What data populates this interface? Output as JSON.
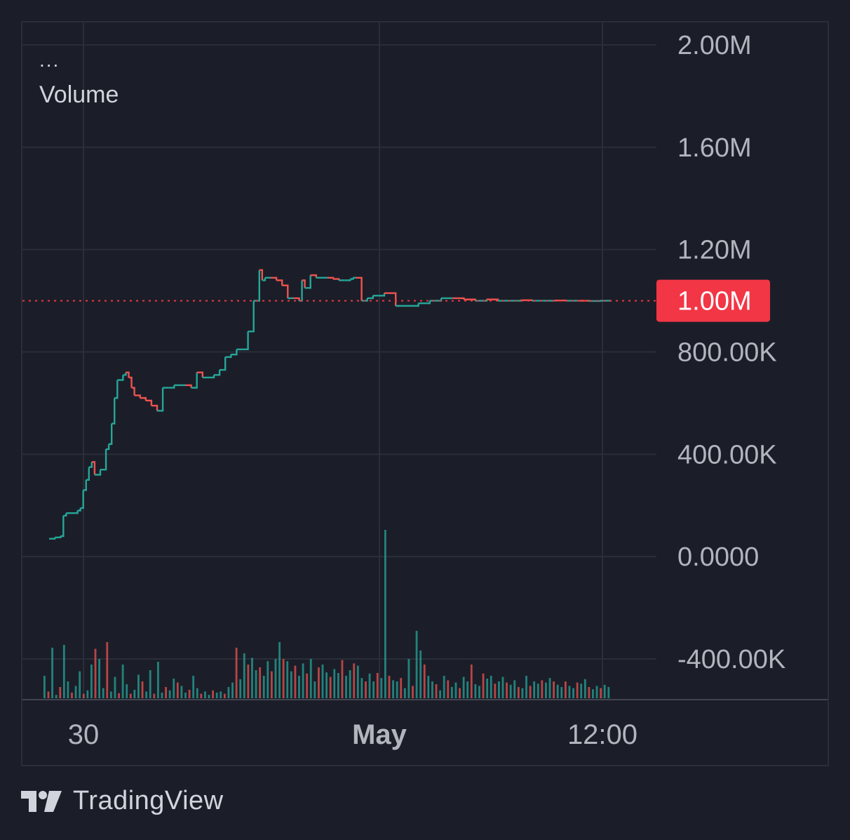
{
  "legend": {
    "dots": "...",
    "title": "Volume"
  },
  "brand": {
    "name": "TradingView",
    "icon": "tradingview-logo-icon"
  },
  "colors": {
    "background": "#1b1e28",
    "grid": "#2a2e39",
    "up": "#26a69a",
    "down": "#ef5350",
    "badge": "#f23645",
    "text": "#b2b5be"
  },
  "chart_data": {
    "type": "line",
    "title": "",
    "xlabel": "",
    "ylabel": "",
    "ylim": [
      -550000,
      2000000
    ],
    "y_ticks": [
      "2.00M",
      "1.60M",
      "1.20M",
      "800.00K",
      "400.00K",
      "0.0000",
      "-400.00K"
    ],
    "y_tick_values": [
      2000000,
      1600000,
      1200000,
      800000,
      400000,
      0,
      -400000
    ],
    "x_ticks": [
      {
        "label": "30",
        "bold": false,
        "t": 0.23
      },
      {
        "label": "May",
        "bold": true,
        "t": 0.55
      },
      {
        "label": "12:00",
        "bold": false,
        "t": 0.79
      }
    ],
    "current_value": 1000000,
    "current_label": "1.00M",
    "series": [
      {
        "x": [
          0.01,
          0.02,
          0.03,
          0.035,
          0.04,
          0.06,
          0.065,
          0.07,
          0.075,
          0.08,
          0.085,
          0.09,
          0.1,
          0.11,
          0.115,
          0.12,
          0.125,
          0.13,
          0.14,
          0.145,
          0.15,
          0.155,
          0.16,
          0.17,
          0.18,
          0.19,
          0.2,
          0.21,
          0.22,
          0.23,
          0.24,
          0.25,
          0.26,
          0.27,
          0.28,
          0.29,
          0.3,
          0.31,
          0.32,
          0.33,
          0.34,
          0.35,
          0.36,
          0.37,
          0.38,
          0.385,
          0.39,
          0.4,
          0.41,
          0.42,
          0.43,
          0.44,
          0.45,
          0.455,
          0.46,
          0.47,
          0.48,
          0.49,
          0.5,
          0.51,
          0.52,
          0.53,
          0.54,
          0.545,
          0.55,
          0.56,
          0.57,
          0.58,
          0.59,
          0.6,
          0.62,
          0.64,
          0.66,
          0.68,
          0.7,
          0.72,
          0.74,
          0.76,
          0.78,
          0.8,
          0.82,
          0.84,
          0.86,
          0.88,
          0.9,
          0.92,
          0.94,
          0.96,
          0.98,
          1.0
        ],
        "y": [
          70000,
          75000,
          80000,
          160000,
          170000,
          180000,
          190000,
          260000,
          300000,
          350000,
          370000,
          320000,
          340000,
          420000,
          440000,
          520000,
          620000,
          690000,
          710000,
          720000,
          700000,
          660000,
          630000,
          620000,
          610000,
          590000,
          570000,
          660000,
          660000,
          670000,
          670000,
          670000,
          660000,
          720000,
          700000,
          700000,
          710000,
          730000,
          780000,
          790000,
          810000,
          810000,
          880000,
          1000000,
          1120000,
          1080000,
          1090000,
          1090000,
          1080000,
          1060000,
          1010000,
          1010000,
          1000000,
          1080000,
          1050000,
          1100000,
          1090000,
          1090000,
          1090000,
          1085000,
          1080000,
          1080000,
          1085000,
          1090000,
          1090000,
          1000000,
          1010000,
          1020000,
          1020000,
          1030000,
          980000,
          980000,
          990000,
          1000000,
          1010000,
          1010000,
          1005000,
          1000000,
          1005000,
          1000000,
          1000000,
          1002000,
          1000000,
          1000000,
          1001000,
          1000000,
          1000000,
          999000,
          1000000,
          1000000
        ]
      }
    ],
    "volume": [
      40,
      12,
      90,
      6,
      20,
      95,
      30,
      10,
      22,
      48,
      8,
      14,
      60,
      88,
      70,
      18,
      100,
      12,
      38,
      9,
      60,
      25,
      8,
      15,
      42,
      30,
      12,
      50,
      8,
      65,
      10,
      20,
      14,
      35,
      28,
      22,
      10,
      15,
      40,
      18,
      8,
      12,
      6,
      14,
      10,
      12,
      8,
      20,
      28,
      90,
      34,
      80,
      60,
      72,
      50,
      55,
      40,
      66,
      48,
      70,
      100,
      70,
      66,
      48,
      58,
      40,
      62,
      44,
      70,
      30,
      55,
      60,
      46,
      38,
      52,
      45,
      68,
      40,
      50,
      62,
      58,
      36,
      30,
      44,
      30,
      45,
      36,
      300,
      40,
      32,
      30,
      36,
      18,
      70,
      22,
      120,
      85,
      60,
      40,
      30,
      25,
      14,
      40,
      32,
      20,
      28,
      18,
      38,
      30,
      60,
      25,
      22,
      44,
      35,
      40,
      26,
      30,
      38,
      28,
      24,
      32,
      20,
      18,
      40,
      22,
      30,
      26,
      32,
      28,
      36,
      30,
      24,
      20,
      30,
      22,
      18,
      28,
      26,
      34,
      20,
      16,
      22,
      18,
      24,
      20
    ]
  }
}
